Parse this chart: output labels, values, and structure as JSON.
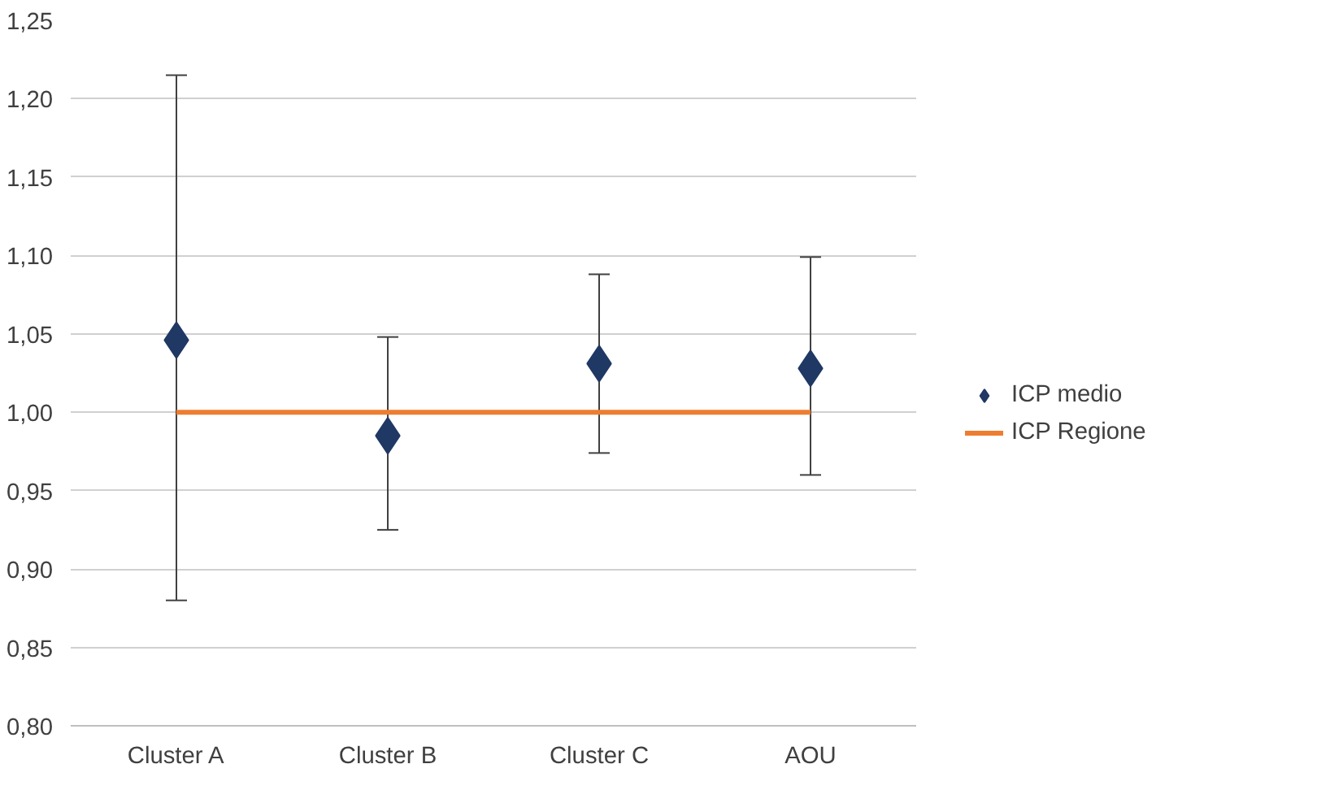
{
  "chart_data": {
    "type": "scatter",
    "categories": [
      "Cluster A",
      "Cluster B",
      "Cluster C",
      "AOU"
    ],
    "series": [
      {
        "name": "ICP medio",
        "marker": "diamond",
        "color": "#203864",
        "values": [
          1.046,
          0.985,
          1.031,
          1.028
        ],
        "errors": [
          [
            0.88,
            1.215
          ],
          [
            0.925,
            1.048
          ],
          [
            0.974,
            1.088
          ],
          [
            0.96,
            1.099
          ]
        ]
      },
      {
        "name": "ICP Regione",
        "type": "line",
        "marker": "none",
        "color": "#ed7d31",
        "values": [
          1.0,
          1.0,
          1.0,
          1.0
        ]
      }
    ],
    "ylim": [
      0.8,
      1.25
    ],
    "yticks": [
      {
        "value": 0.8,
        "label": "0,80"
      },
      {
        "value": 0.85,
        "label": "0,85"
      },
      {
        "value": 0.9,
        "label": "0,90"
      },
      {
        "value": 0.95,
        "label": "0,95"
      },
      {
        "value": 1.0,
        "label": "1,00"
      },
      {
        "value": 1.05,
        "label": "1,05"
      },
      {
        "value": 1.1,
        "label": "1,10"
      },
      {
        "value": 1.15,
        "label": "1,15"
      },
      {
        "value": 1.2,
        "label": "1,20"
      },
      {
        "value": 1.25,
        "label": "1,25"
      }
    ],
    "grid": "y",
    "legend": "right"
  }
}
